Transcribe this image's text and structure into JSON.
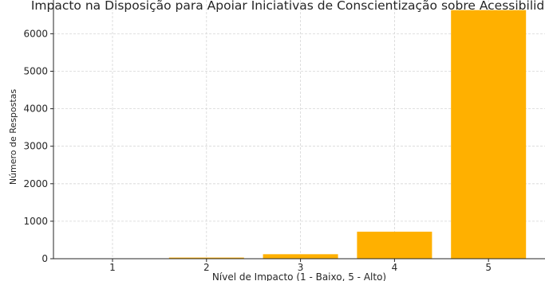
{
  "chart_data": {
    "type": "bar",
    "title": "Impacto na Disposição para Apoiar Iniciativas de Conscientização sobre Acessibilidade",
    "xlabel": "Nível de Impacto (1 - Baixo, 5 - Alto)",
    "ylabel": "Número de Respostas",
    "categories": [
      "1",
      "2",
      "3",
      "4",
      "5"
    ],
    "values": [
      5,
      30,
      120,
      720,
      6630
    ],
    "ylim": [
      0,
      6900
    ],
    "yticks": [
      0,
      1000,
      2000,
      3000,
      4000,
      5000,
      6000
    ],
    "ytick_labels": [
      "0",
      "1000",
      "2000",
      "3000",
      "4000",
      "5000",
      "6000"
    ],
    "bar_color": "#FFB000",
    "grid": true,
    "legend": "none"
  }
}
